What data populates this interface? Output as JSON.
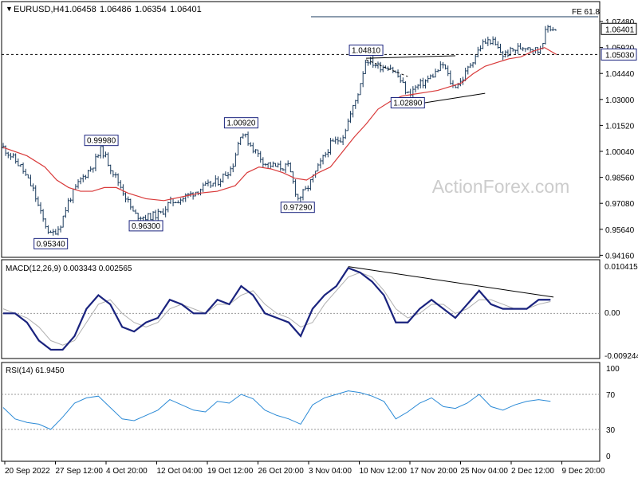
{
  "header": {
    "symbol": "EURUSD,H4",
    "ohlc": [
      "1.06458",
      "1.06486",
      "1.06354",
      "1.06401"
    ],
    "watermark": "ActionForex.com"
  },
  "colors": {
    "price_bars": "#1a3a5c",
    "ma_line": "#d93a3a",
    "macd_line": "#1a237e",
    "signal_line": "#b0b0b0",
    "rsi_line": "#2b8ad6",
    "label_border": "#1a237e",
    "current_price_bg": "#000000",
    "ma_price_bg": "#1a237e",
    "trendline": "#000000",
    "fib_line": "#1a3a5c"
  },
  "chart_data": [
    {
      "type": "line",
      "name": "price",
      "subtype": "ohlc-bars-with-moving-average",
      "x_ticks": [
        "20 Sep 2022",
        "27 Sep 12:00",
        "4 Oct 20:00",
        "12 Oct 04:00",
        "19 Oct 12:00",
        "26 Oct 20:00",
        "3 Nov 04:00",
        "10 Nov 12:00",
        "17 Nov 20:00",
        "25 Nov 04:00",
        "2 Dec 12:00",
        "9 Dec 20:00"
      ],
      "y_ticks": [
        "1.07480",
        "1.05920",
        "1.04440",
        "1.03000",
        "1.01520",
        "1.00040",
        "0.98560",
        "0.97080",
        "0.95640",
        "0.94160"
      ],
      "ylim": [
        0.9416,
        1.0748
      ],
      "xlim": [
        0,
        100
      ],
      "price_path": [
        [
          0,
          1.0005
        ],
        [
          3,
          0.99
        ],
        [
          5,
          0.978
        ],
        [
          6.5,
          0.963
        ],
        [
          8,
          0.9534
        ],
        [
          9.5,
          0.958
        ],
        [
          11,
          0.972
        ],
        [
          13,
          0.983
        ],
        [
          15,
          0.9905
        ],
        [
          16.5,
          0.9998
        ],
        [
          18,
          0.99
        ],
        [
          20,
          0.978
        ],
        [
          22,
          0.9645
        ],
        [
          24,
          0.963
        ],
        [
          26.5,
          0.965
        ],
        [
          28,
          0.971
        ],
        [
          30,
          0.973
        ],
        [
          33,
          0.978
        ],
        [
          36,
          0.982
        ],
        [
          38.5,
          0.99
        ],
        [
          40,
          1.0092
        ],
        [
          42,
          1.0
        ],
        [
          44,
          0.992
        ],
        [
          46,
          0.99
        ],
        [
          48,
          0.99
        ],
        [
          49.5,
          0.9729
        ],
        [
          51,
          0.978
        ],
        [
          53,
          0.99
        ],
        [
          55,
          1.002
        ],
        [
          57,
          1.006
        ],
        [
          59.5,
          1.028
        ],
        [
          61,
          1.0481
        ],
        [
          63,
          1.044
        ],
        [
          65,
          1.044
        ],
        [
          66.5,
          1.038
        ],
        [
          68,
          1.0289
        ],
        [
          69.5,
          1.033
        ],
        [
          71,
          1.036
        ],
        [
          72.5,
          1.04
        ],
        [
          74,
          1.045
        ],
        [
          75.5,
          1.033
        ],
        [
          77,
          1.036
        ],
        [
          78.5,
          1.045
        ],
        [
          80.5,
          1.056
        ],
        [
          82,
          1.058
        ],
        [
          84,
          1.05
        ],
        [
          86,
          1.053
        ],
        [
          88,
          1.055
        ],
        [
          90,
          1.052
        ],
        [
          91.5,
          1.065
        ],
        [
          93,
          1.064
        ]
      ],
      "moving_average": [
        [
          0,
          1.0005
        ],
        [
          4,
          0.996
        ],
        [
          7,
          0.99
        ],
        [
          9,
          0.983
        ],
        [
          11,
          0.979
        ],
        [
          13,
          0.977
        ],
        [
          15,
          0.977
        ],
        [
          17,
          0.979
        ],
        [
          19,
          0.979
        ],
        [
          21,
          0.976
        ],
        [
          24,
          0.973
        ],
        [
          27,
          0.972
        ],
        [
          30,
          0.974
        ],
        [
          33,
          0.976
        ],
        [
          36,
          0.977
        ],
        [
          39,
          0.98
        ],
        [
          41,
          0.987
        ],
        [
          43,
          0.99
        ],
        [
          45,
          0.989
        ],
        [
          47,
          0.987
        ],
        [
          49,
          0.984
        ],
        [
          51,
          0.983
        ],
        [
          53,
          0.987
        ],
        [
          55,
          0.99
        ],
        [
          57,
          0.998
        ],
        [
          59,
          1.006
        ],
        [
          61,
          1.013
        ],
        [
          63,
          1.021
        ],
        [
          65,
          1.025
        ],
        [
          67,
          1.028
        ],
        [
          69,
          1.029
        ],
        [
          71,
          1.03
        ],
        [
          73,
          1.031
        ],
        [
          75,
          1.033
        ],
        [
          77,
          1.035
        ],
        [
          79,
          1.04
        ],
        [
          81,
          1.044
        ],
        [
          83,
          1.046
        ],
        [
          85,
          1.048
        ],
        [
          87,
          1.049
        ],
        [
          89,
          1.052
        ],
        [
          91,
          1.054
        ],
        [
          93,
          1.0503
        ]
      ],
      "level_labels": [
        {
          "text": "0.95340",
          "x": 8,
          "y": 0.9534
        },
        {
          "text": "0.99980",
          "x": 16.5,
          "y": 0.9998
        },
        {
          "text": "0.96300",
          "x": 24,
          "y": 0.963
        },
        {
          "text": "1.00920",
          "x": 40,
          "y": 1.0092
        },
        {
          "text": "0.97290",
          "x": 49.5,
          "y": 0.9729
        },
        {
          "text": "1.04810",
          "x": 61,
          "y": 1.0481
        },
        {
          "text": "1.02890",
          "x": 68,
          "y": 1.0289
        }
      ],
      "annotations": [
        {
          "type": "hline",
          "text": "FE 61.8",
          "y": 1.0748
        },
        {
          "type": "hline-dashed",
          "y": 1.0503
        },
        {
          "type": "trendline",
          "from": [
            61,
            1.0483
          ],
          "to": [
            76,
            1.0496
          ]
        },
        {
          "type": "trendline",
          "from": [
            67,
            1.0225
          ],
          "to": [
            81,
            1.0295
          ]
        },
        {
          "type": "trendline-dashed",
          "from": [
            61,
            1.0475
          ],
          "to": [
            68,
            1.0385
          ]
        }
      ],
      "price_axis_tags": [
        {
          "text": "1.06401",
          "y": 1.06401,
          "style": "current"
        },
        {
          "text": "1.05030",
          "y": 1.0503,
          "style": "ma"
        }
      ]
    },
    {
      "type": "line",
      "name": "MACD",
      "title": "MACD(12,26,9) 0.003343 0.002565",
      "y_ticks": [
        "0.010415",
        "0.00",
        "-0.009244"
      ],
      "ylim": [
        -0.009244,
        0.010415
      ],
      "x_values": [
        0,
        2,
        4,
        6,
        8,
        10,
        12,
        14,
        16,
        18,
        20,
        22,
        24,
        26,
        28,
        30,
        32,
        34,
        36,
        38,
        40,
        42,
        44,
        46,
        48,
        50,
        52,
        54,
        56,
        58,
        60,
        62,
        64,
        66,
        68,
        70,
        72,
        74,
        76,
        78,
        80,
        82,
        84,
        86,
        88,
        90,
        92
      ],
      "series": [
        {
          "values": [
            0.0,
            0.0,
            -0.002,
            -0.006,
            -0.008,
            -0.008,
            -0.005,
            0.001,
            0.004,
            0.002,
            -0.003,
            -0.004,
            -0.002,
            -0.001,
            0.003,
            0.002,
            0.0,
            0.0,
            0.003,
            0.002,
            0.006,
            0.004,
            0.0,
            -0.001,
            -0.002,
            -0.005,
            0.001,
            0.004,
            0.006,
            0.01,
            0.009,
            0.007,
            0.004,
            -0.002,
            -0.002,
            0.001,
            0.003,
            0.001,
            -0.001,
            0.002,
            0.005,
            0.002,
            0.001,
            0.001,
            0.001,
            0.003,
            0.003
          ]
        },
        {
          "values": [
            0.001,
            0.0,
            -0.001,
            -0.003,
            -0.006,
            -0.007,
            -0.006,
            -0.002,
            0.002,
            0.003,
            0.0,
            -0.002,
            -0.003,
            -0.002,
            0.001,
            0.002,
            0.001,
            0.0,
            0.002,
            0.002,
            0.004,
            0.005,
            0.002,
            0.0,
            -0.001,
            -0.003,
            -0.002,
            0.002,
            0.005,
            0.008,
            0.009,
            0.008,
            0.005,
            0.001,
            -0.001,
            0.0,
            0.002,
            0.002,
            0.0,
            0.001,
            0.003,
            0.003,
            0.002,
            0.001,
            0.001,
            0.002,
            0.0026
          ]
        }
      ],
      "annotations": [
        {
          "type": "trendline",
          "from": [
            58,
            0.0103
          ],
          "to": [
            92.5,
            0.0036
          ]
        }
      ]
    },
    {
      "type": "line",
      "name": "RSI",
      "title": "RSI(14) 61.9450",
      "y_ticks": [
        "100",
        "70",
        "30",
        "0"
      ],
      "ylim": [
        0,
        100
      ],
      "levels": [
        70,
        30
      ],
      "x_values": [
        0,
        2,
        4,
        6,
        8,
        10,
        12,
        14,
        16,
        18,
        20,
        22,
        24,
        26,
        28,
        30,
        32,
        34,
        36,
        38,
        40,
        42,
        44,
        46,
        48,
        50,
        52,
        54,
        56,
        58,
        60,
        62,
        64,
        66,
        68,
        70,
        72,
        74,
        76,
        78,
        80,
        82,
        84,
        86,
        88,
        90,
        92
      ],
      "values": [
        55,
        42,
        38,
        36,
        30,
        44,
        60,
        66,
        68,
        55,
        42,
        40,
        46,
        52,
        64,
        58,
        52,
        50,
        62,
        60,
        70,
        65,
        52,
        46,
        42,
        36,
        58,
        66,
        70,
        74,
        72,
        68,
        62,
        42,
        50,
        60,
        66,
        56,
        54,
        60,
        70,
        56,
        52,
        58,
        62,
        64,
        62
      ]
    }
  ]
}
